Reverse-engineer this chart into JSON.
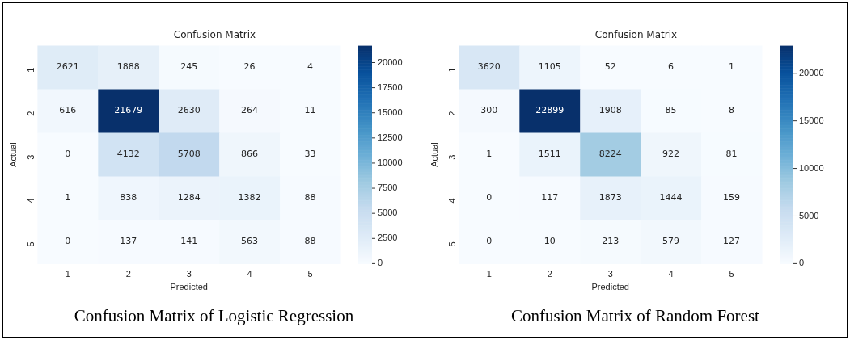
{
  "chart_data": [
    {
      "type": "heatmap",
      "title": "Confusion Matrix",
      "xlabel": "Predicted",
      "ylabel": "Actual",
      "categories": [
        "1",
        "2",
        "3",
        "4",
        "5"
      ],
      "y_categories": [
        "1",
        "2",
        "3",
        "4",
        "5"
      ],
      "cells": [
        [
          2621,
          1888,
          245,
          26,
          4
        ],
        [
          616,
          21679,
          2630,
          264,
          11
        ],
        [
          0,
          4132,
          5708,
          866,
          33
        ],
        [
          1,
          838,
          1284,
          1382,
          88
        ],
        [
          0,
          137,
          141,
          563,
          88
        ]
      ],
      "clim": [
        0,
        21679
      ],
      "cticks": [
        0,
        2500,
        5000,
        7500,
        10000,
        12500,
        15000,
        17500,
        20000
      ],
      "data_labels": true,
      "annotations": [
        "Confusion Matrix of Logistic Regression"
      ]
    },
    {
      "type": "heatmap",
      "title": "Confusion Matrix",
      "xlabel": "Predicted",
      "ylabel": "Actual",
      "categories": [
        "1",
        "2",
        "3",
        "4",
        "5"
      ],
      "y_categories": [
        "1",
        "2",
        "3",
        "4",
        "5"
      ],
      "cells": [
        [
          3620,
          1105,
          52,
          6,
          1
        ],
        [
          300,
          22899,
          1908,
          85,
          8
        ],
        [
          1,
          1511,
          8224,
          922,
          81
        ],
        [
          0,
          117,
          1873,
          1444,
          159
        ],
        [
          0,
          10,
          213,
          579,
          127
        ]
      ],
      "clim": [
        0,
        22899
      ],
      "cticks": [
        0,
        5000,
        10000,
        15000,
        20000
      ],
      "data_labels": true,
      "annotations": [
        "Confusion Matrix of Random Forest"
      ]
    }
  ]
}
